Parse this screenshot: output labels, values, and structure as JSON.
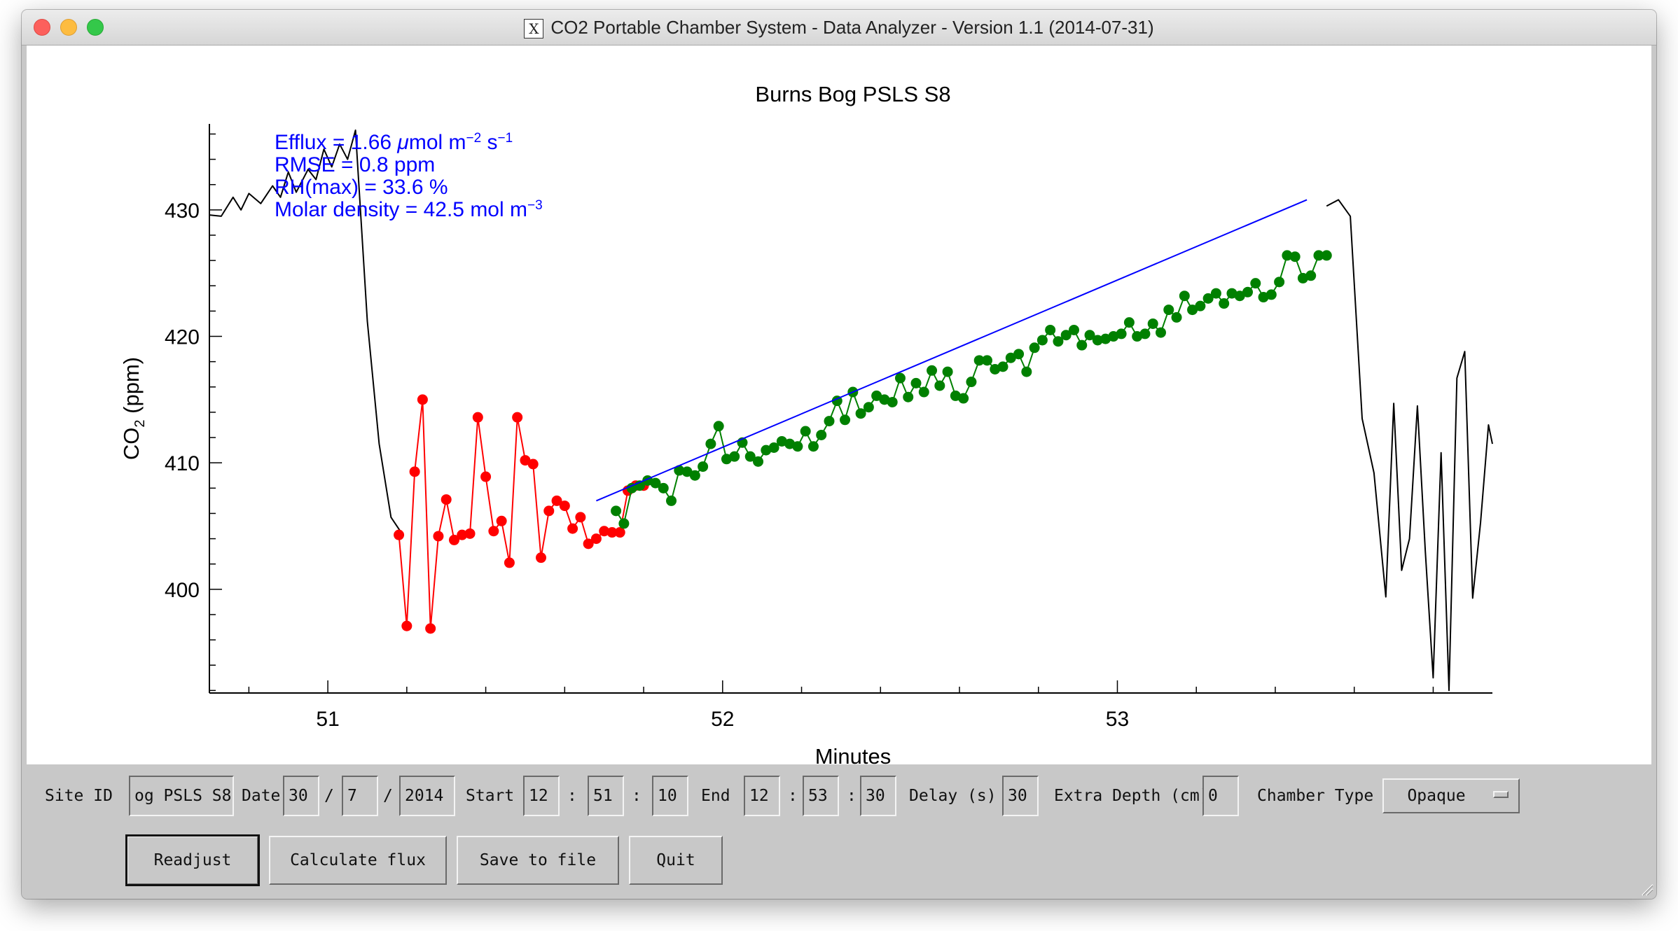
{
  "window": {
    "title": "CO2 Portable Chamber System - Data Analyzer - Version 1.1 (2014-07-31)",
    "x11_glyph": "X"
  },
  "controls": {
    "site_id_label": "Site ID",
    "site_id_value": "og PSLS S8",
    "date_label": "Date",
    "date_day": "30",
    "date_month": "7",
    "date_year": "2014",
    "sep_slash": "/",
    "start_label": "Start",
    "start_h": "12",
    "start_m": "51",
    "start_s": "10",
    "end_label": "End",
    "end_h": "12",
    "end_m": "53",
    "end_s": "30",
    "sep_colon": ":",
    "delay_label": "Delay (s)",
    "delay_value": "30",
    "depth_label": "Extra Depth (cm)",
    "depth_value": "0",
    "chamber_label": "Chamber Type",
    "chamber_value": "Opaque",
    "buttons": {
      "readjust": "Readjust",
      "calculate": "Calculate flux",
      "save": "Save to file",
      "quit": "Quit"
    }
  },
  "chart_data": {
    "type": "line",
    "title": "Burns Bog PSLS S8",
    "xlabel": "Minutes",
    "ylabel_main": "CO",
    "ylabel_sub": "2",
    "ylabel_unit": " (ppm)",
    "xlim": [
      50.7,
      53.95
    ],
    "ylim": [
      391.8,
      436.8
    ],
    "x_ticks": [
      51,
      52,
      53
    ],
    "y_ticks": [
      400,
      410,
      420,
      430
    ],
    "x_tick_labels": [
      "51",
      "52",
      "53"
    ],
    "y_tick_labels": [
      "400",
      "410",
      "420",
      "430"
    ],
    "annotations": [
      {
        "parts": [
          "Efflux = 1.66 ",
          "μ",
          "mol m",
          "−2",
          " s",
          "−1"
        ]
      },
      {
        "parts": [
          "RMSE =  0.8 ppm"
        ]
      },
      {
        "parts": [
          "RH(max) = 33.6 %"
        ]
      },
      {
        "parts": [
          "Molar density = 42.5 mol m",
          "−3"
        ]
      }
    ],
    "colors": {
      "raw": "#000000",
      "excluded": "#ff0000",
      "fitted": "#008000",
      "fit_line": "#0000ff",
      "annotation": "#0000ff"
    },
    "series": [
      {
        "role": "raw-pre",
        "x": [
          50.7,
          50.73,
          50.76,
          50.78,
          50.8,
          50.83,
          50.86,
          50.88,
          50.9,
          50.92,
          50.95,
          50.97,
          50.99,
          51.01,
          51.03,
          51.05,
          51.07,
          51.1,
          51.13,
          51.16,
          51.19
        ],
        "y": [
          429.6,
          429.5,
          431.0,
          430.0,
          431.3,
          430.5,
          431.9,
          431.0,
          433.0,
          431.4,
          433.2,
          432.4,
          434.8,
          433.4,
          435.2,
          434.0,
          436.3,
          421.2,
          411.5,
          405.7,
          404.3
        ]
      },
      {
        "role": "excluded",
        "x": [
          51.18,
          51.2,
          51.22,
          51.24,
          51.26,
          51.28,
          51.3,
          51.32,
          51.34,
          51.36,
          51.38,
          51.4,
          51.42,
          51.44,
          51.46,
          51.48,
          51.5,
          51.52,
          51.54,
          51.56,
          51.58,
          51.6,
          51.62,
          51.64,
          51.66,
          51.68,
          51.7
        ],
        "y": [
          404.3,
          397.1,
          409.3,
          415.0,
          396.9,
          404.2,
          407.1,
          403.9,
          404.3,
          404.4,
          413.6,
          408.9,
          404.6,
          405.4,
          402.1,
          413.6,
          410.2,
          409.9,
          402.5,
          406.2,
          407.0,
          406.6,
          404.8,
          405.7,
          403.6,
          404.0,
          404.6
        ]
      },
      {
        "role": "excluded-tail",
        "x": [
          51.72,
          51.74,
          51.76,
          51.78,
          51.8
        ],
        "y": [
          404.5,
          404.5,
          407.8,
          408.2,
          408.2
        ]
      },
      {
        "role": "fitted",
        "x": [
          51.73,
          51.75,
          51.77,
          51.79,
          51.81,
          51.83,
          51.85,
          51.87,
          51.89,
          51.91,
          51.93,
          51.95,
          51.97,
          51.99,
          52.01,
          52.03,
          52.05,
          52.07,
          52.09,
          52.11,
          52.13,
          52.15,
          52.17,
          52.19,
          52.21,
          52.23,
          52.25,
          52.27,
          52.29,
          52.31,
          52.33,
          52.35,
          52.37,
          52.39,
          52.41,
          52.43,
          52.45,
          52.47,
          52.49,
          52.51,
          52.53,
          52.55,
          52.57,
          52.59,
          52.61,
          52.63,
          52.65,
          52.67,
          52.69,
          52.71,
          52.73,
          52.75,
          52.77,
          52.79,
          52.81,
          52.83,
          52.85,
          52.87,
          52.89,
          52.91,
          52.93,
          52.95,
          52.97,
          52.99,
          53.01,
          53.03,
          53.05,
          53.07,
          53.09,
          53.11,
          53.13,
          53.15,
          53.17,
          53.19,
          53.21,
          53.23,
          53.25,
          53.27,
          53.29,
          53.31,
          53.33,
          53.35,
          53.37,
          53.39,
          53.41,
          53.43,
          53.45,
          53.47,
          53.49,
          53.51,
          53.53
        ],
        "y": [
          406.2,
          405.2,
          408.0,
          408.2,
          408.6,
          408.4,
          408.0,
          407.0,
          409.4,
          409.3,
          409.0,
          409.7,
          411.5,
          412.9,
          410.3,
          410.5,
          411.6,
          410.5,
          410.1,
          411.0,
          411.2,
          411.7,
          411.5,
          411.3,
          412.5,
          411.3,
          412.2,
          413.3,
          414.9,
          413.4,
          415.6,
          413.9,
          414.4,
          415.3,
          415.0,
          414.8,
          416.7,
          415.2,
          416.3,
          415.6,
          417.3,
          416.1,
          417.2,
          415.3,
          415.1,
          416.4,
          418.1,
          418.1,
          417.4,
          417.6,
          418.3,
          418.6,
          417.2,
          419.1,
          419.7,
          420.5,
          419.6,
          420.1,
          420.5,
          419.3,
          420.1,
          419.7,
          419.8,
          420.0,
          420.2,
          421.1,
          420.0,
          420.2,
          421.0,
          420.3,
          422.1,
          421.5,
          423.2,
          422.1,
          422.4,
          423.0,
          423.4,
          422.6,
          423.4,
          423.2,
          423.5,
          424.2,
          423.1,
          423.3,
          424.3,
          426.4,
          426.3,
          424.6,
          424.8,
          426.4,
          426.4
        ]
      },
      {
        "role": "raw-post",
        "x": [
          53.53,
          53.56,
          53.59,
          53.62,
          53.65,
          53.68,
          53.7,
          53.72,
          53.74,
          53.76,
          53.78,
          53.8,
          53.82,
          53.84,
          53.86,
          53.88,
          53.9,
          53.92,
          53.94,
          53.95
        ],
        "y": [
          430.3,
          430.8,
          429.5,
          413.5,
          409.2,
          399.4,
          414.7,
          401.5,
          404.0,
          414.5,
          403.0,
          393.0,
          410.8,
          392.0,
          416.7,
          418.8,
          399.3,
          405.3,
          413.0,
          411.5
        ]
      }
    ],
    "fit_line": {
      "x": [
        51.68,
        53.48
      ],
      "y": [
        407.0,
        430.8
      ]
    }
  }
}
